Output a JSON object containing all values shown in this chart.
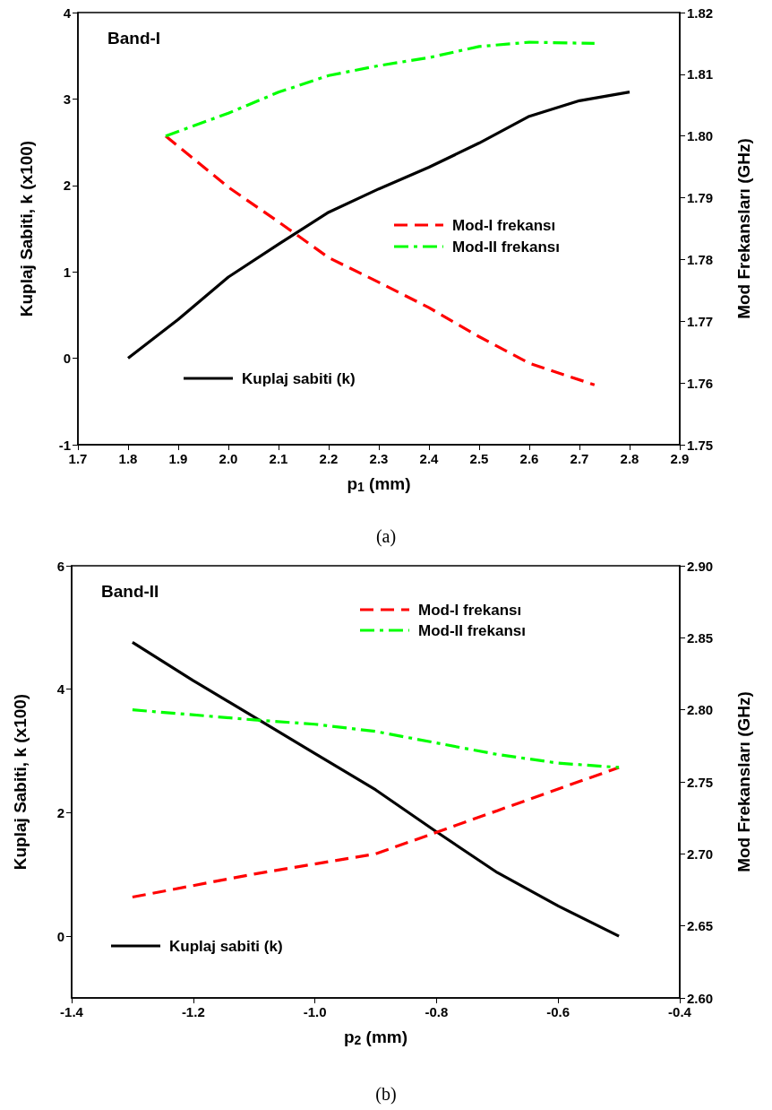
{
  "chart_data": [
    {
      "type": "line",
      "title": "Band-I",
      "xlabel": "p$_{1}$ (mm)",
      "ylabel": "Kuplaj Sabiti, k (x100)",
      "y2label": "Mod Frekansları (GHz)",
      "annotations": [
        "(a)"
      ],
      "xlim": [
        1.7,
        2.9
      ],
      "xticks": [
        1.7,
        1.8,
        1.9,
        {
          "value": 2,
          "label": "2.0"
        },
        2.1,
        2.2,
        2.3,
        2.4,
        2.5,
        2.6,
        2.7,
        2.8,
        2.9
      ],
      "ylim": [
        -1,
        4
      ],
      "yticks": [
        -1,
        0,
        1,
        2,
        3,
        4
      ],
      "y2lim": [
        1.75,
        1.82
      ],
      "y2ticks": [
        1.75,
        1.76,
        1.77,
        1.78,
        1.79,
        {
          "value": 1.8,
          "label": "1.80"
        },
        1.81,
        1.82
      ],
      "marker": "none",
      "legend": "right",
      "series": [
        {
          "name": "Kuplaj sabiti (k)",
          "color": "#000000",
          "line_style": "solid",
          "x": [
            1.8,
            1.9,
            2.0,
            2.1,
            2.2,
            2.3,
            2.4,
            2.5,
            2.6,
            2.7,
            2.8
          ],
          "values": [
            0,
            0.45,
            0.94,
            1.32,
            1.69,
            1.96,
            2.21,
            2.49,
            2.8,
            2.98,
            3.08
          ]
        },
        {
          "name": "Mod-I frekansı",
          "color": "#ff0000",
          "line_style": "dashed",
          "axis": "y2",
          "x": [
            1.875,
            2.0,
            2.1,
            2.2,
            2.3,
            2.4,
            2.5,
            2.6,
            2.73
          ],
          "values": [
            1.8,
            1.7917,
            1.7861,
            1.7803,
            1.7763,
            1.7722,
            1.7675,
            1.7632,
            1.7597
          ]
        },
        {
          "name": "Mod-II frekansı",
          "color": "#00ff00",
          "line_style": "dashdot",
          "axis": "y2",
          "x": [
            1.875,
            2.0,
            2.1,
            2.2,
            2.3,
            2.4,
            2.5,
            2.6,
            2.73
          ],
          "values": [
            1.8,
            1.8037,
            1.8071,
            1.8098,
            1.8114,
            1.8127,
            1.8145,
            1.8152,
            1.815
          ]
        }
      ]
    },
    {
      "type": "line",
      "title": "Band-II",
      "xlabel": "p$_{2}$ (mm)",
      "ylabel": "Kuplaj Sabiti, k (x100)",
      "y2label": "Mod Frekansları (GHz)",
      "annotations": [
        "(b)"
      ],
      "xlim": [
        -1.4,
        -0.4
      ],
      "xticks": [
        -1.4,
        -1.2,
        {
          "value": -1,
          "label": "-1.0"
        },
        -0.8,
        -0.6,
        -0.4
      ],
      "ylim": [
        -1,
        6
      ],
      "yticks": [
        0,
        2,
        4,
        6
      ],
      "y2lim": [
        2.6,
        2.9
      ],
      "y2ticks": [
        {
          "value": 2.6,
          "label": "2.60"
        },
        2.65,
        {
          "value": 2.7,
          "label": "2.70"
        },
        2.75,
        {
          "value": 2.8,
          "label": "2.80"
        },
        2.85,
        {
          "value": 2.9,
          "label": "2.90"
        }
      ],
      "marker": "none",
      "legend": "top left",
      "series": [
        {
          "name": "Kuplaj sabiti (k)",
          "color": "#000000",
          "line_style": "solid",
          "x": [
            -1.3,
            -1.2,
            -1.1,
            -1.0,
            -0.9,
            -0.8,
            -0.7,
            -0.6,
            -0.5
          ],
          "values": [
            4.76,
            4.14,
            3.55,
            2.96,
            2.37,
            1.69,
            1.03,
            0.49,
            0
          ]
        },
        {
          "name": "Mod-I frekansı",
          "color": "#ff0000",
          "line_style": "dashed",
          "axis": "y2",
          "x": [
            -1.3,
            -1.1,
            -0.9,
            -0.7,
            -0.5
          ],
          "values": [
            2.67,
            2.686,
            2.7,
            2.73,
            2.76
          ]
        },
        {
          "name": "Mod-II frekansı",
          "color": "#00ff00",
          "line_style": "dashdot",
          "axis": "y2",
          "x": [
            -1.3,
            -1.1,
            -1.0,
            -0.9,
            -0.8,
            -0.7,
            -0.6,
            -0.5
          ],
          "values": [
            2.8,
            2.793,
            2.79,
            2.785,
            2.777,
            2.769,
            2.763,
            2.76
          ]
        }
      ]
    }
  ]
}
